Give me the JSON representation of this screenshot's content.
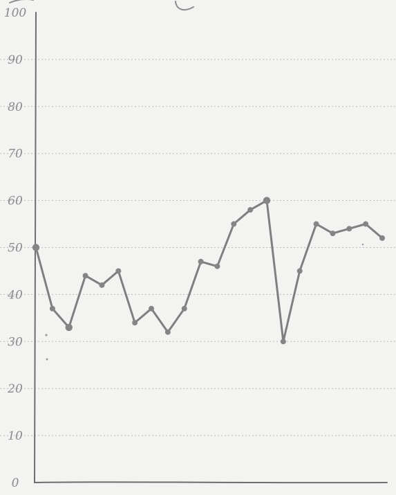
{
  "chart_data": {
    "type": "line",
    "title": "",
    "xlabel": "",
    "ylabel": "",
    "ylim": [
      0,
      100
    ],
    "ytick_labels": [
      "0",
      "10",
      "20",
      "30",
      "40",
      "50",
      "60",
      "70",
      "80",
      "90",
      "100"
    ],
    "grid": true,
    "legend": "none",
    "colors": {
      "paper": "#f3f3f1",
      "line": "#7f7f7f",
      "grid": "#b9b9b9",
      "axis": "#6d6d6d",
      "tick_text": "#8a8a8a"
    },
    "series": [
      {
        "points": [
          {
            "x": 1,
            "y": 50
          },
          {
            "x": 2,
            "y": 37
          },
          {
            "x": 3,
            "y": 33
          },
          {
            "x": 4,
            "y": 44
          },
          {
            "x": 5,
            "y": 42
          },
          {
            "x": 6,
            "y": 45
          },
          {
            "x": 7,
            "y": 34
          },
          {
            "x": 8,
            "y": 37
          },
          {
            "x": 9,
            "y": 32
          },
          {
            "x": 10,
            "y": 37
          },
          {
            "x": 11,
            "y": 47
          },
          {
            "x": 12,
            "y": 46
          },
          {
            "x": 13,
            "y": 55
          },
          {
            "x": 14,
            "y": 58
          },
          {
            "x": 15,
            "y": 60
          },
          {
            "x": 16,
            "y": 30
          },
          {
            "x": 17,
            "y": 45
          },
          {
            "x": 18,
            "y": 55
          },
          {
            "x": 19,
            "y": 53
          },
          {
            "x": 20,
            "y": 54
          },
          {
            "x": 21,
            "y": 55
          },
          {
            "x": 22,
            "y": 52
          }
        ]
      }
    ]
  }
}
